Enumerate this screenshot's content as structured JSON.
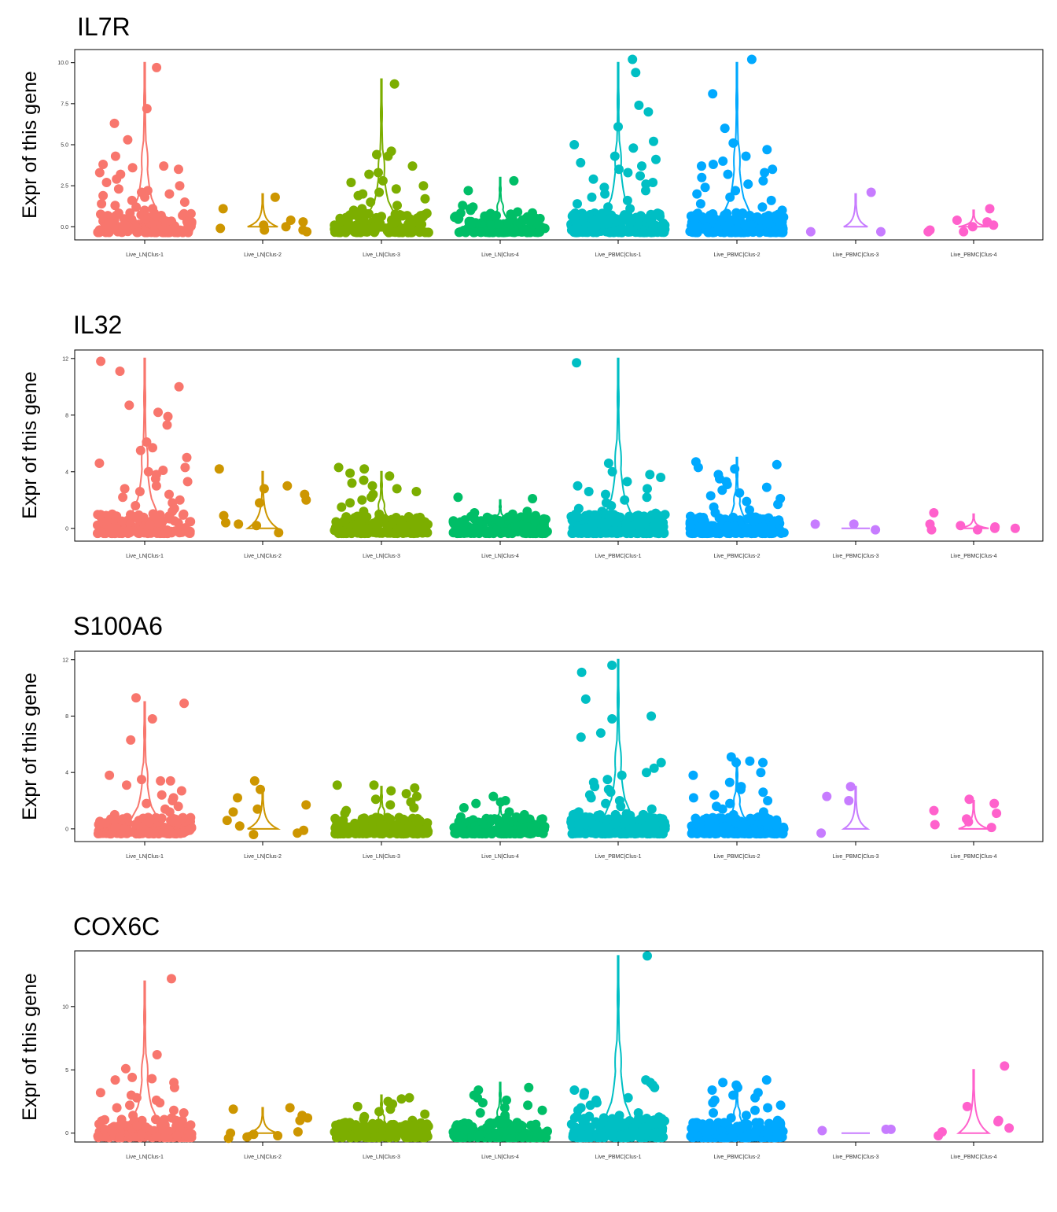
{
  "chart_data": [
    {
      "type": "violin",
      "title": "IL7R",
      "ylabel": "Expr of this gene",
      "yticks": [
        0.0,
        2.5,
        5.0,
        7.5,
        10.0
      ],
      "ytick_labels": [
        "0.0",
        "2.5",
        "5.0",
        "7.5",
        "10.0"
      ],
      "ylim": [
        -0.8,
        10.8
      ],
      "categories": [
        "Live_LN|Clus-1",
        "Live_LN|Clus-2",
        "Live_LN|Clus-3",
        "Live_LN|Clus-4",
        "Live_PBMC|Clus-1",
        "Live_PBMC|Clus-2",
        "Live_PBMC|Clus-3",
        "Live_PBMC|Clus-4"
      ],
      "series": [
        {
          "violin_max": 10.0,
          "n_points": 160,
          "points": [
            9.7,
            7.2,
            6.3,
            5.3,
            4.3,
            3.8,
            3.7,
            3.6,
            3.5,
            3.3,
            3.2,
            2.9,
            2.7,
            2.5,
            2.3,
            2.2,
            2.1,
            2.0,
            1.9,
            1.8,
            1.6,
            1.5,
            1.4,
            1.3,
            1.2,
            1.1,
            1.0
          ]
        },
        {
          "violin_max": 2.0,
          "n_points": 10,
          "points": [
            1.8,
            1.1,
            0.4,
            0.3,
            0.1,
            0.0,
            -0.1,
            -0.2,
            -0.2,
            -0.3
          ]
        },
        {
          "violin_max": 9.0,
          "n_points": 170,
          "points": [
            8.7,
            4.6,
            4.4,
            4.3,
            3.7,
            3.3,
            3.2,
            2.8,
            2.7,
            2.5,
            2.3,
            2.1,
            2.0,
            1.9,
            1.7,
            1.5,
            1.3,
            1.1,
            1.0
          ]
        },
        {
          "violin_max": 3.0,
          "n_points": 140,
          "points": [
            2.8,
            2.2,
            1.3,
            1.2,
            1.1,
            1.0,
            0.9
          ]
        },
        {
          "violin_max": 10.0,
          "n_points": 230,
          "points": [
            10.2,
            9.4,
            7.4,
            7.0,
            6.1,
            5.2,
            5.0,
            4.8,
            4.3,
            4.1,
            3.9,
            3.7,
            3.5,
            3.3,
            3.1,
            2.9,
            2.7,
            2.6,
            2.4,
            2.2,
            2.0,
            1.8,
            1.6,
            1.4,
            1.2,
            1.1
          ]
        },
        {
          "violin_max": 10.0,
          "n_points": 210,
          "points": [
            10.2,
            8.1,
            6.0,
            5.1,
            4.7,
            4.3,
            4.0,
            3.8,
            3.7,
            3.5,
            3.3,
            3.2,
            3.0,
            2.8,
            2.6,
            2.4,
            2.2,
            2.0,
            1.8,
            1.6,
            1.4,
            1.2,
            1.0
          ]
        },
        {
          "violin_max": 2.0,
          "n_points": 3,
          "points": [
            2.1,
            -0.3,
            -0.3
          ]
        },
        {
          "violin_max": 1.0,
          "n_points": 8,
          "points": [
            1.1,
            0.4,
            0.3,
            0.1,
            0.0,
            -0.2,
            -0.3,
            -0.3
          ]
        }
      ]
    },
    {
      "type": "violin",
      "title": "IL32",
      "ylabel": "Expr of this gene",
      "yticks": [
        0,
        4,
        8,
        12
      ],
      "ytick_labels": [
        "0",
        "4",
        "8",
        "12"
      ],
      "ylim": [
        -0.9,
        12.6
      ],
      "categories": [
        "Live_LN|Clus-1",
        "Live_LN|Clus-2",
        "Live_LN|Clus-3",
        "Live_LN|Clus-4",
        "Live_PBMC|Clus-1",
        "Live_PBMC|Clus-2",
        "Live_PBMC|Clus-3",
        "Live_PBMC|Clus-4"
      ],
      "series": [
        {
          "violin_max": 12.0,
          "n_points": 180,
          "points": [
            11.8,
            11.1,
            10.0,
            8.7,
            8.2,
            7.9,
            7.3,
            6.1,
            5.7,
            5.5,
            5.0,
            4.6,
            4.3,
            4.1,
            4.0,
            3.8,
            3.5,
            3.3,
            3.0,
            2.8,
            2.6,
            2.4,
            2.2,
            2.0,
            1.8,
            1.6,
            1.4,
            1.2,
            1.0
          ]
        },
        {
          "violin_max": 4.0,
          "n_points": 11,
          "points": [
            4.2,
            3.0,
            2.8,
            2.4,
            2.0,
            1.8,
            0.9,
            0.4,
            0.3,
            0.2,
            -0.3
          ]
        },
        {
          "violin_max": 4.0,
          "n_points": 190,
          "points": [
            4.3,
            4.2,
            3.9,
            3.7,
            3.4,
            3.2,
            3.0,
            2.8,
            2.6,
            2.4,
            2.2,
            2.0,
            1.8,
            1.5,
            1.2,
            1.0
          ]
        },
        {
          "violin_max": 2.0,
          "n_points": 150,
          "points": [
            2.2,
            2.1,
            1.2,
            1.1,
            1.0,
            0.9,
            0.8
          ]
        },
        {
          "violin_max": 12.0,
          "n_points": 230,
          "points": [
            11.7,
            4.6,
            4.0,
            3.8,
            3.6,
            3.3,
            3.0,
            2.8,
            2.6,
            2.4,
            2.2,
            2.0,
            1.8,
            1.6,
            1.4,
            1.2,
            1.0
          ]
        },
        {
          "violin_max": 5.0,
          "n_points": 210,
          "points": [
            4.7,
            4.5,
            4.3,
            4.2,
            3.8,
            3.5,
            3.3,
            3.1,
            2.9,
            2.7,
            2.5,
            2.3,
            2.1,
            1.9,
            1.7,
            1.5,
            1.3,
            1.1
          ]
        },
        {
          "violin_max": 0.0,
          "n_points": 3,
          "points": [
            0.3,
            0.3,
            -0.1
          ]
        },
        {
          "violin_max": 1.0,
          "n_points": 8,
          "points": [
            1.1,
            0.3,
            0.2,
            0.1,
            0.0,
            0.0,
            -0.1,
            -0.1
          ]
        }
      ]
    },
    {
      "type": "violin",
      "title": "S100A6",
      "ylabel": "Expr of this gene",
      "yticks": [
        0,
        4,
        8,
        12
      ],
      "ytick_labels": [
        "0",
        "4",
        "8",
        "12"
      ],
      "ylim": [
        -0.9,
        12.6
      ],
      "categories": [
        "Live_LN|Clus-1",
        "Live_LN|Clus-2",
        "Live_LN|Clus-3",
        "Live_LN|Clus-4",
        "Live_PBMC|Clus-1",
        "Live_PBMC|Clus-2",
        "Live_PBMC|Clus-3",
        "Live_PBMC|Clus-4"
      ],
      "series": [
        {
          "violin_max": 9.0,
          "n_points": 160,
          "points": [
            9.3,
            8.9,
            7.8,
            6.3,
            3.8,
            3.5,
            3.4,
            3.4,
            3.1,
            2.7,
            2.4,
            2.2,
            2.0,
            1.8,
            1.6,
            1.4,
            1.2,
            1.0
          ]
        },
        {
          "violin_max": 3.0,
          "n_points": 11,
          "points": [
            3.4,
            2.8,
            2.2,
            1.7,
            1.4,
            1.2,
            0.6,
            0.2,
            -0.1,
            -0.3,
            -0.4
          ]
        },
        {
          "violin_max": 3.0,
          "n_points": 170,
          "points": [
            3.1,
            3.1,
            2.9,
            2.7,
            2.5,
            2.3,
            2.1,
            1.9,
            1.7,
            1.5,
            1.3,
            1.1
          ]
        },
        {
          "violin_max": 2.0,
          "n_points": 150,
          "points": [
            2.3,
            2.0,
            1.9,
            1.8,
            1.5,
            1.2,
            1.0
          ]
        },
        {
          "violin_max": 12.0,
          "n_points": 230,
          "points": [
            11.6,
            11.1,
            9.2,
            8.0,
            7.8,
            6.8,
            6.5,
            4.7,
            4.3,
            4.0,
            3.8,
            3.5,
            3.3,
            3.0,
            2.8,
            2.6,
            2.4,
            2.2,
            2.0,
            1.8,
            1.6,
            1.4,
            1.2,
            1.0
          ]
        },
        {
          "violin_max": 5.0,
          "n_points": 210,
          "points": [
            5.1,
            4.8,
            4.7,
            4.7,
            4.0,
            3.8,
            3.3,
            3.0,
            2.8,
            2.6,
            2.4,
            2.2,
            2.0,
            1.8,
            1.6,
            1.4,
            1.2,
            1.0
          ]
        },
        {
          "violin_max": 3.0,
          "n_points": 4,
          "points": [
            3.0,
            2.3,
            2.0,
            -0.3
          ]
        },
        {
          "violin_max": 2.0,
          "n_points": 8,
          "points": [
            2.1,
            1.8,
            1.3,
            1.1,
            0.7,
            0.5,
            0.3,
            0.1
          ]
        }
      ]
    },
    {
      "type": "violin",
      "title": "COX6C",
      "ylabel": "Expr of this gene",
      "yticks": [
        0,
        5,
        10
      ],
      "ytick_labels": [
        "0",
        "5",
        "10"
      ],
      "ylim": [
        -0.7,
        14.4
      ],
      "categories": [
        "Live_LN|Clus-1",
        "Live_LN|Clus-2",
        "Live_LN|Clus-3",
        "Live_LN|Clus-4",
        "Live_PBMC|Clus-1",
        "Live_PBMC|Clus-2",
        "Live_PBMC|Clus-3",
        "Live_PBMC|Clus-4"
      ],
      "series": [
        {
          "violin_max": 12.0,
          "n_points": 160,
          "points": [
            12.2,
            6.2,
            5.1,
            4.4,
            4.3,
            4.2,
            4.0,
            3.6,
            3.2,
            3.0,
            2.8,
            2.6,
            2.4,
            2.2,
            2.0,
            1.8,
            1.6,
            1.4,
            1.2,
            1.0
          ]
        },
        {
          "violin_max": 2.0,
          "n_points": 11,
          "points": [
            2.0,
            1.9,
            1.4,
            1.2,
            1.0,
            0.1,
            0.0,
            -0.1,
            -0.2,
            -0.3,
            -0.4
          ]
        },
        {
          "violin_max": 3.0,
          "n_points": 190,
          "points": [
            2.8,
            2.7,
            2.5,
            2.3,
            2.1,
            1.9,
            1.7,
            1.5,
            1.3,
            1.1,
            1.0
          ]
        },
        {
          "violin_max": 4.0,
          "n_points": 160,
          "points": [
            3.6,
            3.4,
            3.0,
            2.8,
            2.6,
            2.4,
            2.2,
            2.0,
            1.8,
            1.6,
            1.4,
            1.2,
            1.0
          ]
        },
        {
          "violin_max": 14.0,
          "n_points": 230,
          "points": [
            14.0,
            4.2,
            4.0,
            3.8,
            3.6,
            3.4,
            3.2,
            3.0,
            2.8,
            2.6,
            2.4,
            2.2,
            2.0,
            1.8,
            1.6,
            1.4,
            1.2,
            1.0
          ]
        },
        {
          "violin_max": 4.0,
          "n_points": 210,
          "points": [
            4.2,
            4.0,
            3.8,
            3.6,
            3.4,
            3.2,
            3.0,
            2.8,
            2.6,
            2.4,
            2.2,
            2.0,
            1.8,
            1.6,
            1.4,
            1.2,
            1.0
          ]
        },
        {
          "violin_max": 0.0,
          "n_points": 3,
          "points": [
            0.3,
            0.3,
            0.2
          ]
        },
        {
          "violin_max": 5.0,
          "n_points": 7,
          "points": [
            5.3,
            2.1,
            1.0,
            0.9,
            0.4,
            0.1,
            -0.2
          ]
        }
      ]
    }
  ],
  "colors": [
    "#F8766D",
    "#CD9600",
    "#7CAE00",
    "#00BE67",
    "#00BFC4",
    "#00A9FF",
    "#C77CFF",
    "#FF61CC"
  ]
}
